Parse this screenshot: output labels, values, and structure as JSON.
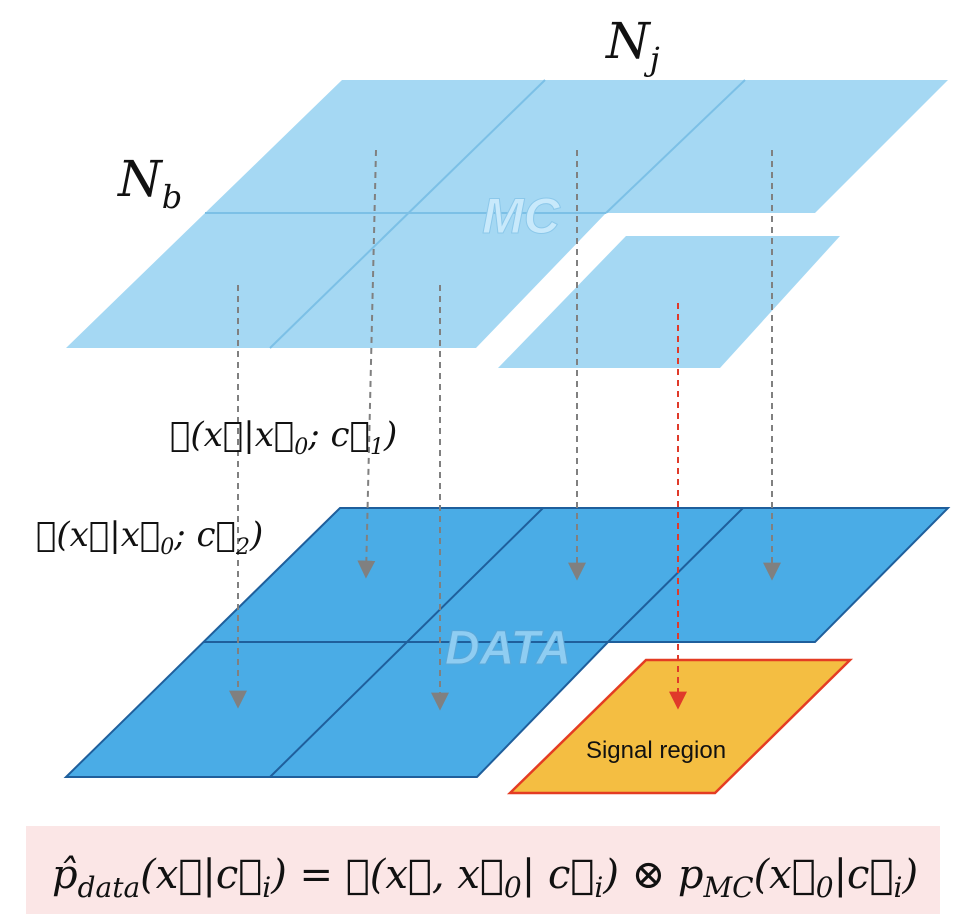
{
  "labels": {
    "n_j": "N",
    "n_j_sub": "j",
    "n_b": "N",
    "n_b_sub": "b",
    "mc": "MC",
    "data": "DATA",
    "signal_region": "Signal region"
  },
  "transfer": {
    "t1_main": "𝒯(x⃗|x⃗",
    "t1_sub0": "0",
    "t1_mid": "; c⃗",
    "t1_sub1": "1",
    "t1_end": ")",
    "t2_main": "𝒯(x⃗|x⃗",
    "t2_sub0": "0",
    "t2_mid": "; c⃗",
    "t2_sub1": "2",
    "t2_end": ")"
  },
  "formula": {
    "p_hat": "p̂",
    "sub_data": "data",
    "part1": "(x⃗|c⃗",
    "sub_i1": "i",
    "part2": ") = 𝒯(x⃗, x⃗",
    "sub_0a": "0",
    "part3": "| c⃗",
    "sub_i2": "i",
    "part4": ") ⊗ p",
    "sub_mc": "MC",
    "part5": "(x⃗",
    "sub_0b": "0",
    "part6": "|c⃗",
    "sub_i3": "i",
    "part7": ")"
  },
  "colors": {
    "mc_fill": "#a5d8f3",
    "mc_line": "#7cc0e6",
    "data_fill": "#4aace6",
    "data_line": "#1f5f9c",
    "signal_fill": "#f4be42",
    "signal_stroke": "#e43c23",
    "arrow_gray": "#808080",
    "arrow_red": "#e03a2a",
    "formula_bg": "#fbe6e6"
  }
}
